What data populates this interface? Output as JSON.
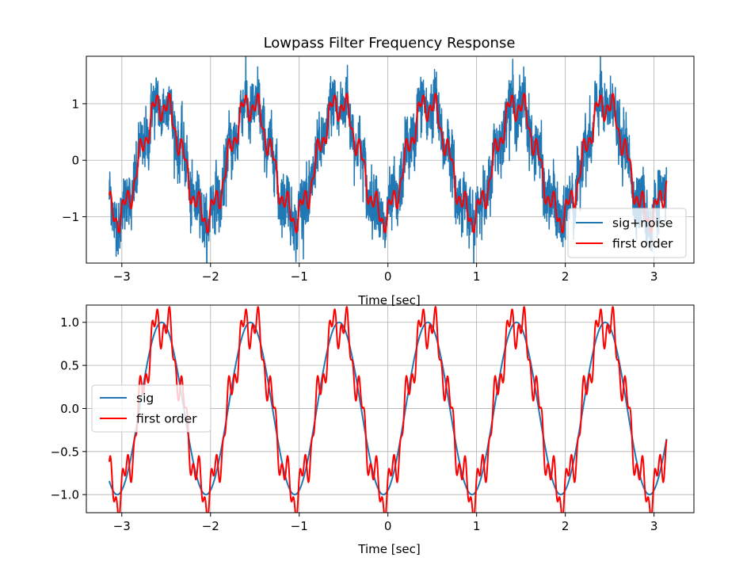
{
  "chart_data": [
    {
      "type": "line",
      "title": "Lowpass Filter Frequency Response",
      "xlabel": "Time [sec]",
      "ylabel": "",
      "xlim": [
        -3.4,
        3.45
      ],
      "ylim": [
        -1.82,
        1.84
      ],
      "xticks": [
        -3,
        -2,
        -1,
        0,
        1,
        2,
        3
      ],
      "xtick_labels": [
        "−3",
        "−2",
        "−1",
        "0",
        "1",
        "2",
        "3"
      ],
      "yticks": [
        -1,
        0,
        1
      ],
      "ytick_labels": [
        "−1",
        "0",
        "1"
      ],
      "grid": true,
      "legend_position": "lower-right",
      "x_range": [
        -3.1416,
        3.1416
      ],
      "series": [
        {
          "name": "sig+noise",
          "color": "#1f77b4",
          "expression": "sin(2*pi*t - 1.25) + 0.2*sin(2*pi*6*t + 0.2) + 0.13*sin(2*pi*15*t + 1.1) + 0.3*noise"
        },
        {
          "name": "first order",
          "color": "#ff0000",
          "expression": "sin(2*pi*t - 1.25) + 0.2*sin(2*pi*6*t + 0.2) + 0.13*sin(2*pi*15*t + 1.1)"
        }
      ]
    },
    {
      "type": "line",
      "title": "",
      "xlabel": "Time [sec]",
      "ylabel": "",
      "xlim": [
        -3.4,
        3.45
      ],
      "ylim": [
        -1.21,
        1.2
      ],
      "xticks": [
        -3,
        -2,
        -1,
        0,
        1,
        2,
        3
      ],
      "xtick_labels": [
        "−3",
        "−2",
        "−1",
        "0",
        "1",
        "2",
        "3"
      ],
      "yticks": [
        -1.0,
        -0.5,
        0.0,
        0.5,
        1.0
      ],
      "ytick_labels": [
        "−1.0",
        "−0.5",
        "0.0",
        "0.5",
        "1.0"
      ],
      "grid": true,
      "legend_position": "center-left",
      "x_range": [
        -3.1416,
        3.1416
      ],
      "series": [
        {
          "name": "sig",
          "color": "#1f77b4",
          "expression": "sin(2*pi*t - 1.25)"
        },
        {
          "name": "first order",
          "color": "#ff0000",
          "expression": "sin(2*pi*t - 1.25) + 0.2*sin(2*pi*6*t + 0.2) + 0.13*sin(2*pi*15*t + 1.1)"
        }
      ]
    }
  ]
}
